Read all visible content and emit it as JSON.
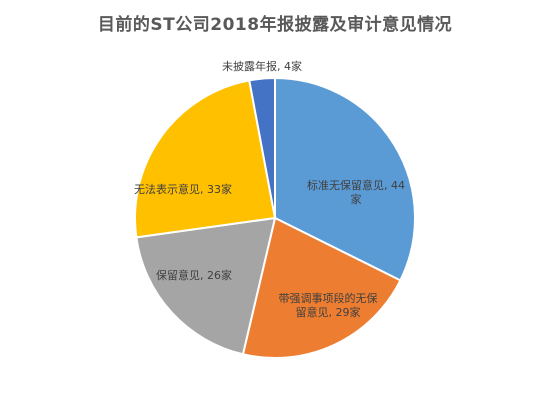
{
  "chart_data": {
    "type": "pie",
    "title": "目前的ST公司2018年报披露及审计意见情况",
    "slices": [
      {
        "name": "标准无保留意见",
        "value": 44,
        "color": "#5B9BD5",
        "label_lines": [
          "标准无保留意见, 44",
          "家"
        ]
      },
      {
        "name": "带强调事项段的无保留意见",
        "value": 29,
        "color": "#ED7D31",
        "label_lines": [
          "带强调事项段的无保",
          "留意见, 29家"
        ]
      },
      {
        "name": "保留意见",
        "value": 26,
        "color": "#A5A5A5",
        "label_lines": [
          "保留意见, 26家"
        ]
      },
      {
        "name": "无法表示意见",
        "value": 33,
        "color": "#FFC000",
        "label_lines": [
          "无法表示意见, 33家"
        ]
      },
      {
        "name": "未披露年报",
        "value": 4,
        "color": "#4472C4",
        "label_lines": [
          "未披露年报, 4家"
        ]
      }
    ],
    "legend": "none"
  }
}
